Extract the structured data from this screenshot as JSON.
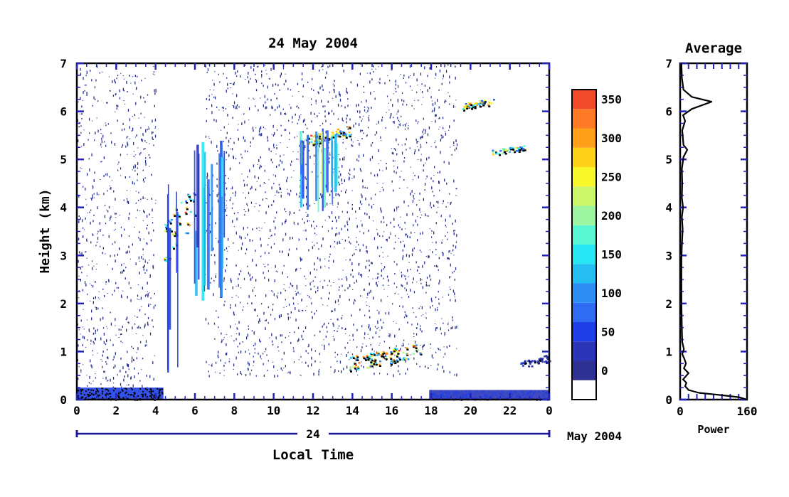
{
  "colors": {
    "frame": "#000000",
    "axis_blue": "#2222bb",
    "date_axis": "#1a1a9a",
    "noise": "#26308e",
    "colorbar": [
      "#ffffff",
      "#2e3192",
      "#2b35b8",
      "#1f3fe6",
      "#2f6cf2",
      "#2e8ef5",
      "#26bdf0",
      "#25e6f2",
      "#58f7d1",
      "#9cf5a0",
      "#cdf66b",
      "#f7f729",
      "#ffd11a",
      "#ff9f1a",
      "#ff7a26",
      "#f04a2a"
    ]
  },
  "chart_data": [
    {
      "type": "heatmap",
      "title": "24 May 2004",
      "xlabel": "Local Time",
      "ylabel": "Height (km)",
      "xlim": [
        0,
        24
      ],
      "ylim": [
        0,
        7
      ],
      "x_ticks": [
        "0",
        "2",
        "4",
        "6",
        "8",
        "10",
        "12",
        "14",
        "16",
        "18",
        "20",
        "22",
        "0"
      ],
      "y_ticks": [
        "0",
        "1",
        "2",
        "3",
        "4",
        "5",
        "6",
        "7"
      ],
      "date_axis": {
        "day_label": "24",
        "month_label": "May 2004"
      },
      "colorbar": {
        "levels": [
          0,
          25,
          50,
          75,
          100,
          125,
          150,
          175,
          200,
          225,
          250,
          275,
          300,
          325,
          350,
          375
        ],
        "tick_labels": [
          "0",
          "50",
          "100",
          "150",
          "200",
          "250",
          "300",
          "350"
        ]
      },
      "features": [
        {
          "kind": "noise_region",
          "x": [
            0,
            4
          ],
          "y": [
            0.2,
            7
          ]
        },
        {
          "kind": "noise_region",
          "x": [
            6.5,
            19.3
          ],
          "y": [
            0.5,
            7
          ]
        },
        {
          "kind": "surface_layer",
          "x": [
            0,
            4.4
          ],
          "y": [
            0,
            0.25
          ],
          "level": 350
        },
        {
          "kind": "surface_layer",
          "x": [
            17.9,
            24
          ],
          "y": [
            0,
            0.2
          ],
          "level": 50
        },
        {
          "kind": "layer",
          "x": [
            4.3,
            6.0
          ],
          "y": [
            2.8,
            4.5
          ],
          "level": 350
        },
        {
          "kind": "plume",
          "x": [
            4.5,
            5.2
          ],
          "y": [
            0,
            4.6
          ],
          "level": 75
        },
        {
          "kind": "plume",
          "x": [
            5.8,
            7.5
          ],
          "y": [
            2.0,
            5.4
          ],
          "level": 150
        },
        {
          "kind": "layer",
          "x": [
            11.5,
            13.8
          ],
          "y": [
            5.3,
            5.7
          ],
          "level": 350
        },
        {
          "kind": "plume",
          "x": [
            11.3,
            13.2
          ],
          "y": [
            3.9,
            5.7
          ],
          "level": 200
        },
        {
          "kind": "layer",
          "x": [
            13.8,
            17.5
          ],
          "y": [
            0.6,
            1.2
          ],
          "level": 350
        },
        {
          "kind": "layer",
          "x": [
            19.5,
            21.2
          ],
          "y": [
            6.05,
            6.3
          ],
          "level": 350
        },
        {
          "kind": "layer",
          "x": [
            21.0,
            22.7
          ],
          "y": [
            5.1,
            5.3
          ],
          "level": 300
        },
        {
          "kind": "layer",
          "x": [
            22.5,
            24.0
          ],
          "y": [
            0.65,
            0.95
          ],
          "level": 75
        }
      ]
    },
    {
      "type": "line",
      "title": "Average",
      "xlabel": "Power",
      "xlim": [
        0,
        160
      ],
      "ylim": [
        0,
        7
      ],
      "x_ticks": [
        "0",
        "160"
      ],
      "y_ticks": [
        "0",
        "1",
        "2",
        "3",
        "4",
        "5",
        "6",
        "7"
      ],
      "profile": [
        [
          160,
          0.0
        ],
        [
          140,
          0.05
        ],
        [
          90,
          0.1
        ],
        [
          45,
          0.14
        ],
        [
          20,
          0.2
        ],
        [
          12,
          0.28
        ],
        [
          15,
          0.35
        ],
        [
          7,
          0.42
        ],
        [
          20,
          0.55
        ],
        [
          9,
          0.65
        ],
        [
          14,
          0.75
        ],
        [
          10,
          0.85
        ],
        [
          5,
          0.95
        ],
        [
          9,
          1.05
        ],
        [
          5,
          1.2
        ],
        [
          4,
          1.5
        ],
        [
          3,
          2.0
        ],
        [
          3,
          2.5
        ],
        [
          3,
          2.9
        ],
        [
          4,
          3.2
        ],
        [
          6,
          3.55
        ],
        [
          4,
          3.8
        ],
        [
          7,
          4.0
        ],
        [
          4,
          4.2
        ],
        [
          5,
          4.5
        ],
        [
          4,
          4.8
        ],
        [
          8,
          5.05
        ],
        [
          17,
          5.2
        ],
        [
          8,
          5.3
        ],
        [
          5,
          5.6
        ],
        [
          12,
          5.8
        ],
        [
          7,
          5.92
        ],
        [
          28,
          6.05
        ],
        [
          75,
          6.2
        ],
        [
          28,
          6.3
        ],
        [
          8,
          6.45
        ],
        [
          4,
          6.7
        ],
        [
          3,
          7.0
        ]
      ]
    }
  ]
}
